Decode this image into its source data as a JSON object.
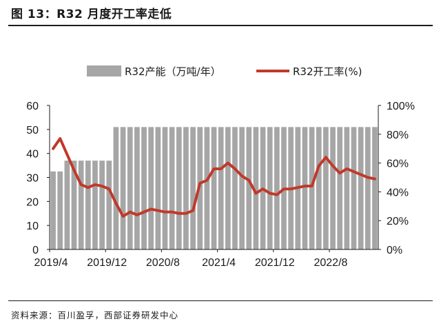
{
  "figure_title": "图 13：R32 月度开工率走低",
  "source_note": "资料来源：百川盈孚，西部证券研发中心",
  "colors": {
    "bar": "#a6a6a6",
    "line": "#c0392b",
    "axis": "#1a1a1a"
  },
  "chart_data": {
    "type": "bar+line",
    "title": "",
    "legend_position": "top",
    "grid": false,
    "x_tick_labels": [
      "2019/4",
      "2019/12",
      "2020/8",
      "2021/4",
      "2021/12",
      "2022/8"
    ],
    "x_tick_months": [
      "2019-04",
      "2019-12",
      "2020-08",
      "2021-04",
      "2021-12",
      "2022-08"
    ],
    "months": [
      "2019-04",
      "2019-05",
      "2019-06",
      "2019-07",
      "2019-08",
      "2019-09",
      "2019-10",
      "2019-11",
      "2019-12",
      "2020-01",
      "2020-02",
      "2020-03",
      "2020-04",
      "2020-05",
      "2020-06",
      "2020-07",
      "2020-08",
      "2020-09",
      "2020-10",
      "2020-11",
      "2020-12",
      "2021-01",
      "2021-02",
      "2021-03",
      "2021-04",
      "2021-05",
      "2021-06",
      "2021-07",
      "2021-08",
      "2021-09",
      "2021-10",
      "2021-11",
      "2021-12",
      "2022-01",
      "2022-02",
      "2022-03",
      "2022-04",
      "2022-05",
      "2022-06",
      "2022-07",
      "2022-08",
      "2022-09",
      "2022-10",
      "2022-11",
      "2022-12",
      "2023-01",
      "2023-02"
    ],
    "y_left": {
      "min": 0,
      "max": 60,
      "ticks": [
        "0",
        "10",
        "20",
        "30",
        "40",
        "50",
        "60"
      ]
    },
    "y_right": {
      "min": 0,
      "max": 100,
      "ticks": [
        "0%",
        "20%",
        "40%",
        "60%",
        "80%",
        "100%"
      ]
    },
    "series": [
      {
        "name": "R32产能（万吨/年）",
        "type": "bar",
        "axis": "left",
        "values": [
          32.5,
          32.5,
          37,
          37,
          37,
          37,
          37,
          37,
          37,
          51,
          51,
          51,
          51,
          51,
          51,
          51,
          51,
          51,
          51,
          51,
          51,
          51,
          51,
          51,
          51,
          51,
          51,
          51,
          51,
          51,
          51,
          51,
          51,
          51,
          51,
          51,
          51,
          51,
          51,
          51,
          51,
          51,
          51,
          51,
          51,
          51,
          51
        ]
      },
      {
        "name": "R32开工率(%)",
        "type": "line",
        "axis": "right",
        "values": [
          70,
          77,
          66,
          55,
          45,
          43,
          45,
          44,
          42,
          32,
          23,
          26,
          24,
          26,
          28,
          27,
          26,
          26,
          25,
          25,
          27,
          46,
          48,
          56,
          56,
          60,
          56,
          51,
          48,
          39,
          42,
          39,
          38,
          42,
          42,
          43,
          44,
          44,
          58,
          64,
          58,
          53,
          56,
          54,
          52,
          50,
          49
        ]
      }
    ]
  }
}
